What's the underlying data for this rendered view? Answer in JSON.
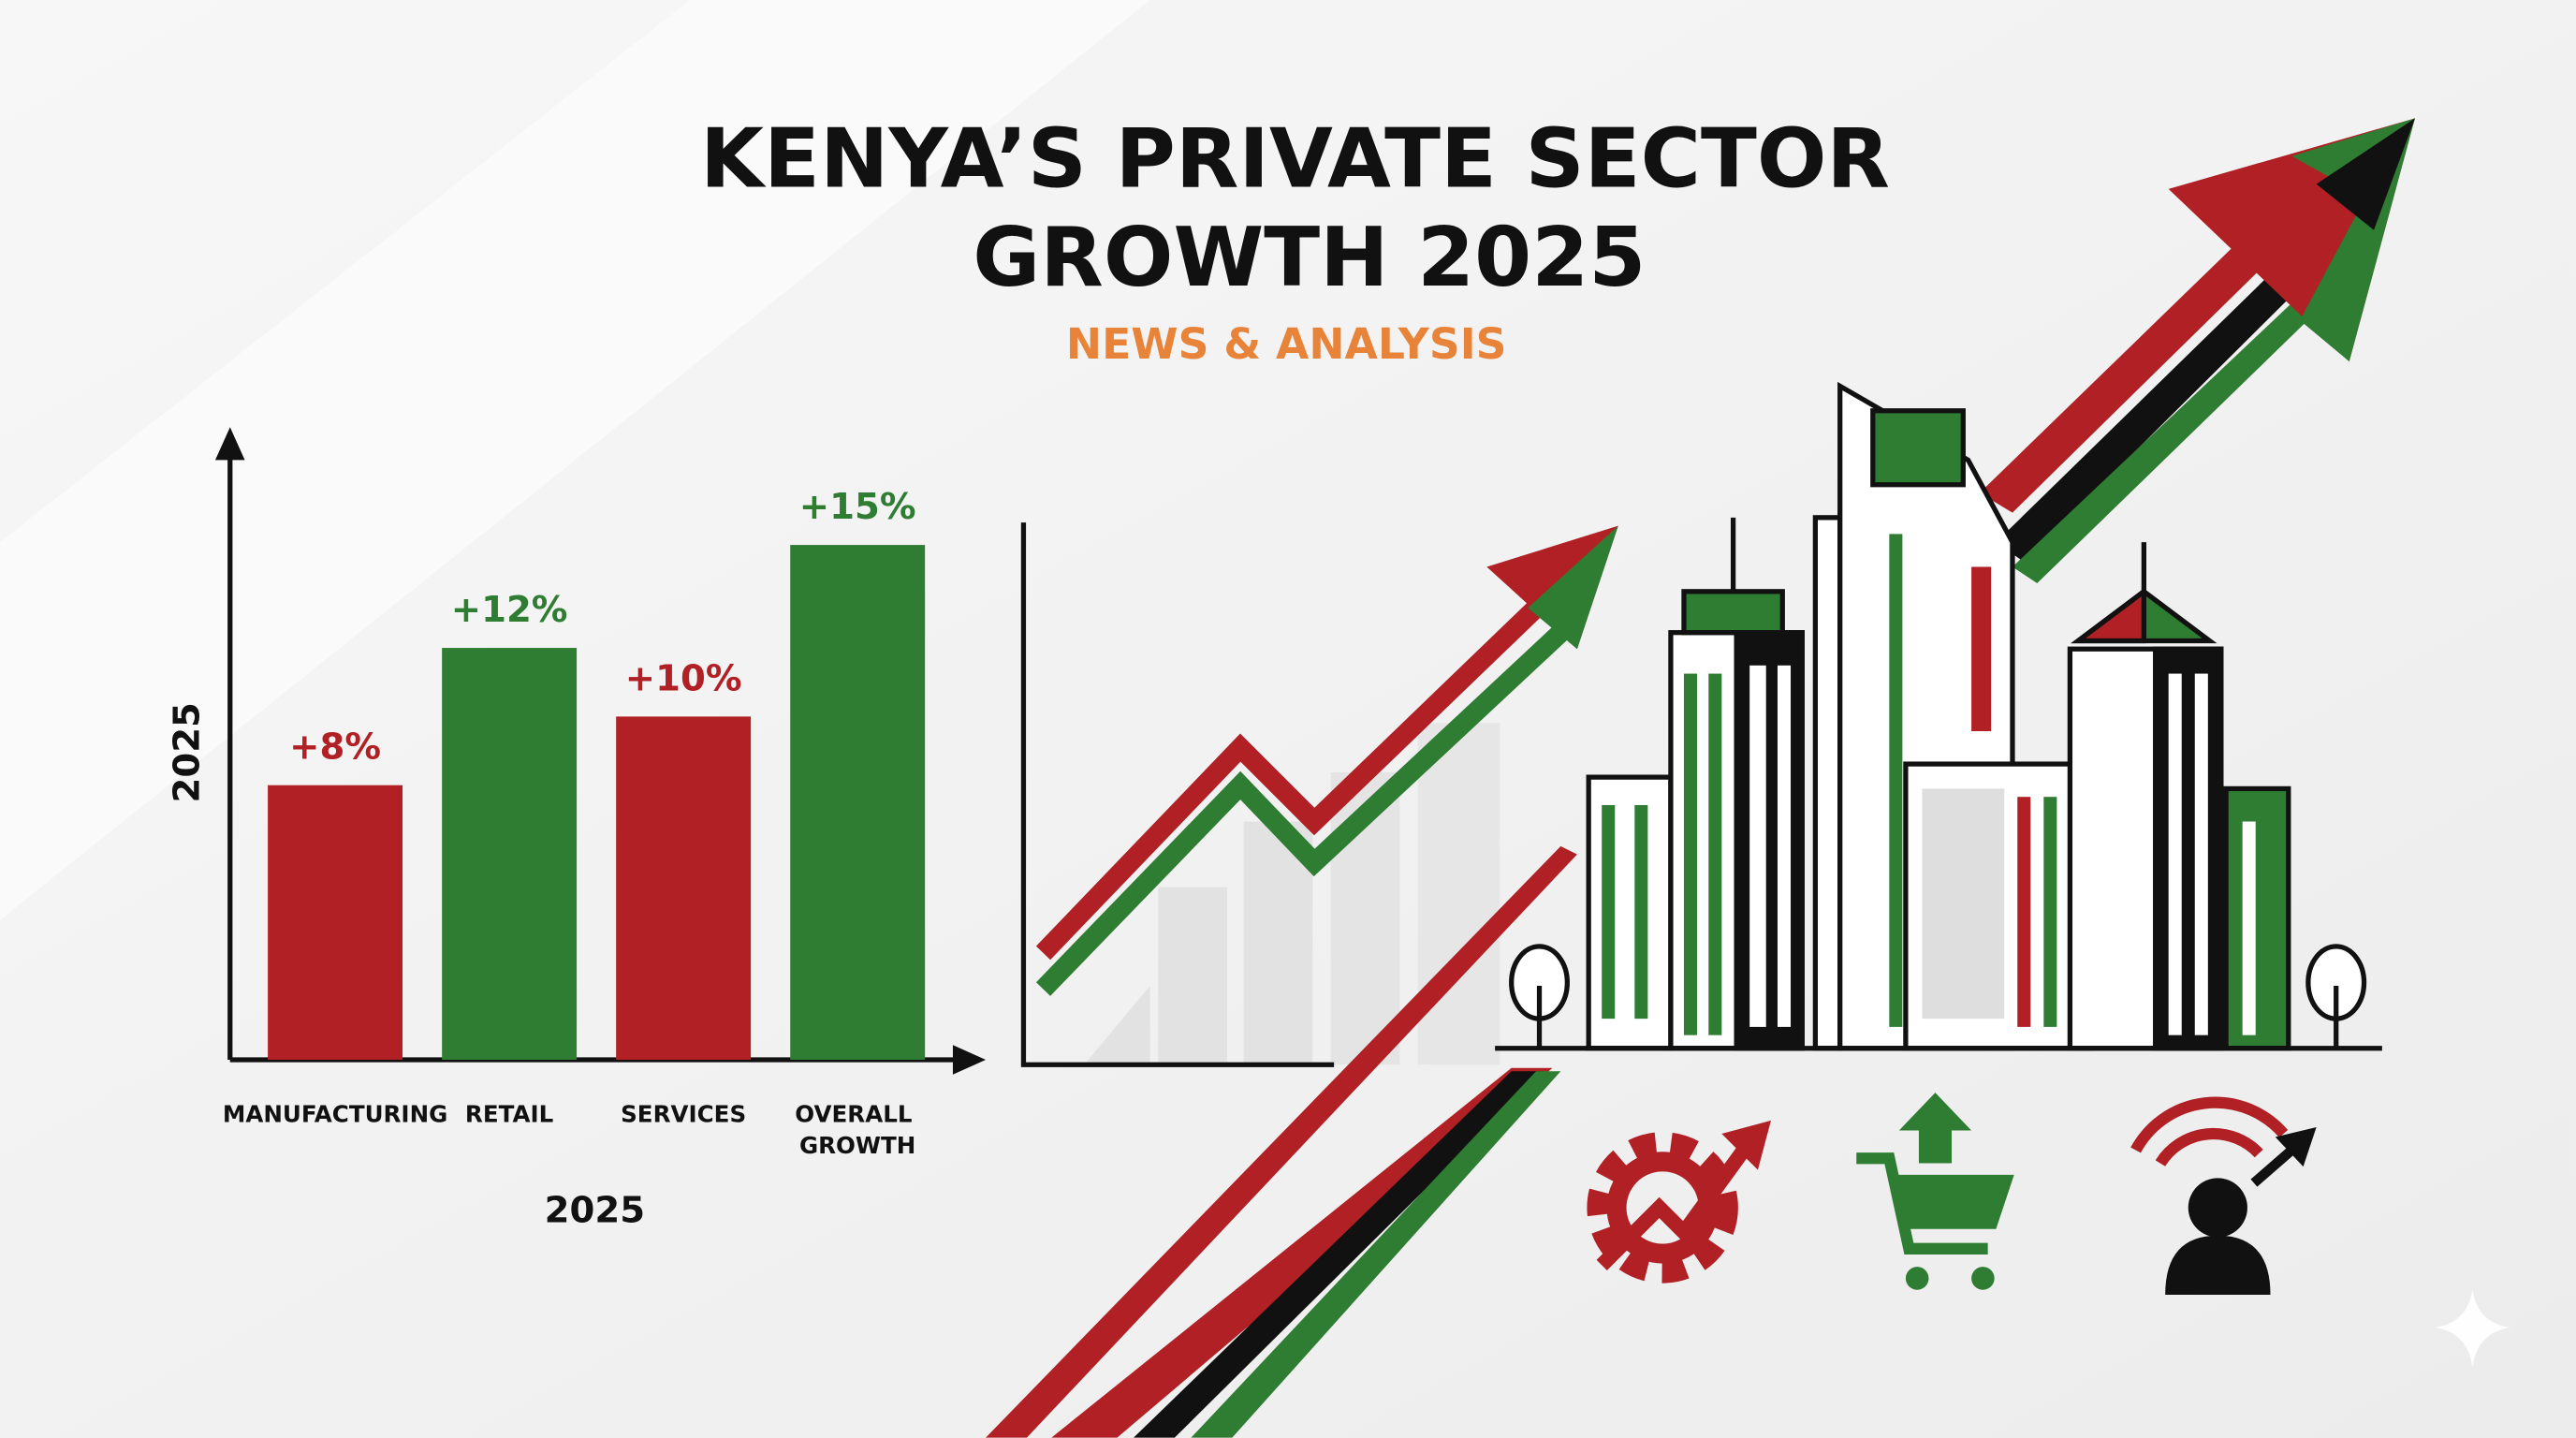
{
  "chart_data": {
    "type": "bar",
    "title": "KENYA’S PRIVATE SECTOR GROWTH 2025",
    "subtitle": "NEWS & ANALYSIS",
    "y_label": "2025",
    "x_label": "2025",
    "categories": [
      "MANUFACTURING",
      "RETAIL",
      "SERVICES",
      "OVERALL GROWTH"
    ],
    "values": [
      8,
      12,
      10,
      15
    ],
    "value_labels": [
      "+8%",
      "+12%",
      "+10%",
      "+15%"
    ],
    "colors": [
      "#b02024",
      "#2f7d32",
      "#b02024",
      "#2f7d32"
    ],
    "ylim": [
      0,
      18
    ]
  }
}
